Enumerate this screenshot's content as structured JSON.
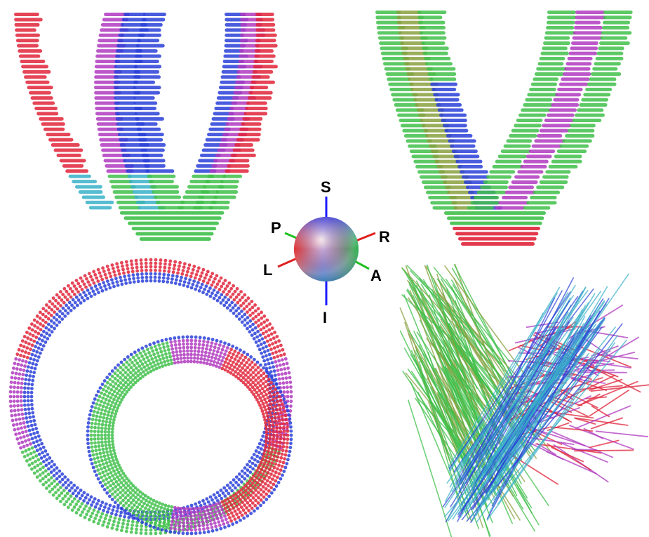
{
  "orientation_marker": {
    "labels": {
      "superior": "S",
      "inferior": "I",
      "posterior": "P",
      "anterior": "A",
      "left": "L",
      "right": "R"
    },
    "axis_colors": {
      "superior_inferior": "#1a1aff",
      "left_right": "#e02020",
      "anterior_posterior": "#20c020"
    }
  },
  "panels": [
    {
      "view": "long-axis-ellipsoid-glyphs"
    },
    {
      "view": "long-axis-ellipsoid-glyphs-rotated"
    },
    {
      "view": "short-axis-ring-glyphs"
    },
    {
      "view": "fiber-tracts"
    }
  ],
  "palette": {
    "red": "#e0243a",
    "green": "#3fc04a",
    "blue": "#2a3fd8",
    "magenta": "#b03ac0",
    "cyan": "#38b0c8",
    "olive": "#8aa040"
  }
}
